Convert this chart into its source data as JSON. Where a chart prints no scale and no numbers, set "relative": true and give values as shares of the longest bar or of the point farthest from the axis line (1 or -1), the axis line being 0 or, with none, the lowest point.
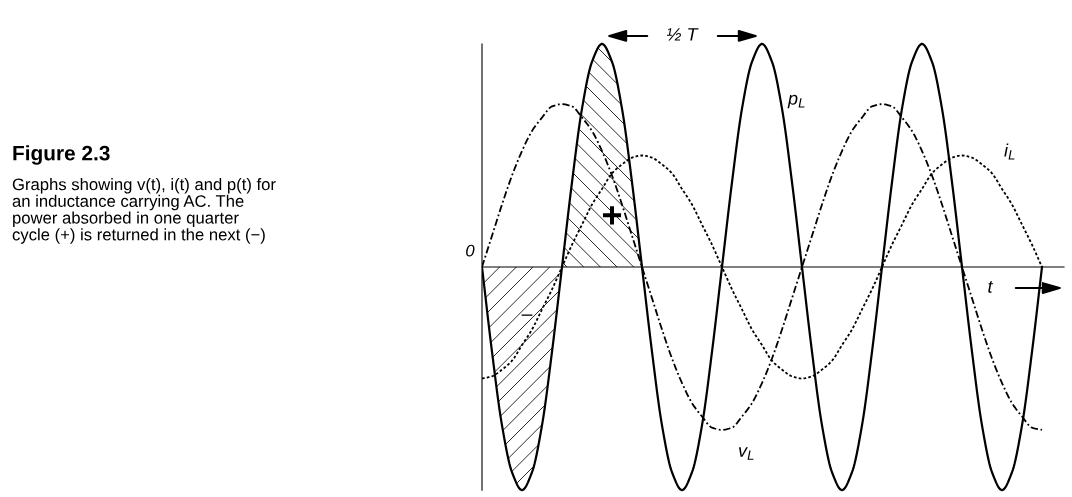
{
  "chart_data": {
    "type": "line",
    "relative": true,
    "title": "Figure 2.3",
    "subtitle": "Graphs showing v(t), i(t) and p(t) for\nan inductance carrying AC. The\npower absorbed in one quarter\ncycle (+) is returned in the next (−)",
    "categories": [
      null,
      null,
      null,
      null,
      null,
      null,
      null,
      null,
      null,
      null,
      null,
      null,
      null,
      null,
      null,
      null,
      null,
      null,
      null,
      null,
      null,
      null,
      null,
      null,
      null,
      null,
      null,
      null,
      null,
      null,
      null,
      null,
      null,
      null,
      null,
      null,
      null,
      null,
      null,
      null,
      null,
      null,
      null,
      null,
      null,
      null,
      null,
      null,
      null,
      null,
      null,
      null,
      null,
      null,
      null,
      null,
      null
    ],
    "series": [
      {
        "name": "p$_{L}$",
        "color": "#000000",
        "line_style": "solid",
        "values": [
          0,
          -0.38,
          -0.71,
          -0.92,
          -1,
          -0.92,
          -0.71,
          -0.38,
          0,
          0.38,
          0.71,
          0.92,
          1,
          0.92,
          0.71,
          0.38,
          0,
          -0.38,
          -0.71,
          -0.92,
          -1,
          -0.92,
          -0.71,
          -0.38,
          0,
          0.38,
          0.71,
          0.92,
          1,
          0.92,
          0.71,
          0.38,
          0,
          -0.38,
          -0.71,
          -0.92,
          -1,
          -0.92,
          -0.71,
          -0.38,
          0,
          0.38,
          0.71,
          0.92,
          1,
          0.92,
          0.71,
          0.38,
          0,
          -0.38,
          -0.71,
          -0.92,
          -1,
          -0.92,
          -0.71,
          -0.38,
          0
        ]
      },
      {
        "name": "i$_{L}$",
        "color": "#000000",
        "line_style": "dotted",
        "values": [
          -0.5,
          -0.49,
          -0.46,
          -0.42,
          -0.35,
          -0.28,
          -0.19,
          -0.1,
          0,
          0.1,
          0.19,
          0.28,
          0.35,
          0.42,
          0.46,
          0.49,
          0.5,
          0.49,
          0.46,
          0.42,
          0.35,
          0.28,
          0.19,
          0.1,
          0,
          -0.1,
          -0.19,
          -0.28,
          -0.35,
          -0.42,
          -0.46,
          -0.49,
          -0.5,
          -0.49,
          -0.46,
          -0.42,
          -0.35,
          -0.28,
          -0.19,
          -0.1,
          0,
          0.1,
          0.19,
          0.28,
          0.35,
          0.42,
          0.46,
          0.49,
          0.5,
          0.49,
          0.46,
          0.42,
          0.35,
          0.28,
          0.19,
          0.1,
          0
        ]
      },
      {
        "name": "v$_{L}$",
        "color": "#000000",
        "line_style": "dashdot",
        "values": [
          0,
          0.14,
          0.28,
          0.41,
          0.52,
          0.61,
          0.67,
          0.72,
          0.73,
          0.72,
          0.67,
          0.61,
          0.52,
          0.41,
          0.28,
          0.14,
          0,
          -0.14,
          -0.28,
          -0.41,
          -0.52,
          -0.61,
          -0.67,
          -0.72,
          -0.73,
          -0.72,
          -0.67,
          -0.61,
          -0.52,
          -0.41,
          -0.28,
          -0.14,
          0,
          0.14,
          0.28,
          0.41,
          0.52,
          0.61,
          0.67,
          0.72,
          0.73,
          0.72,
          0.67,
          0.61,
          0.52,
          0.41,
          0.28,
          0.14,
          0,
          -0.14,
          -0.28,
          -0.41,
          -0.52,
          -0.61,
          -0.67,
          -0.72,
          -0.73
        ]
      }
    ],
    "annotations": [
      "0",
      "t",
      "+",
      "–",
      "½ T"
    ],
    "legend": false,
    "marker": "none"
  }
}
